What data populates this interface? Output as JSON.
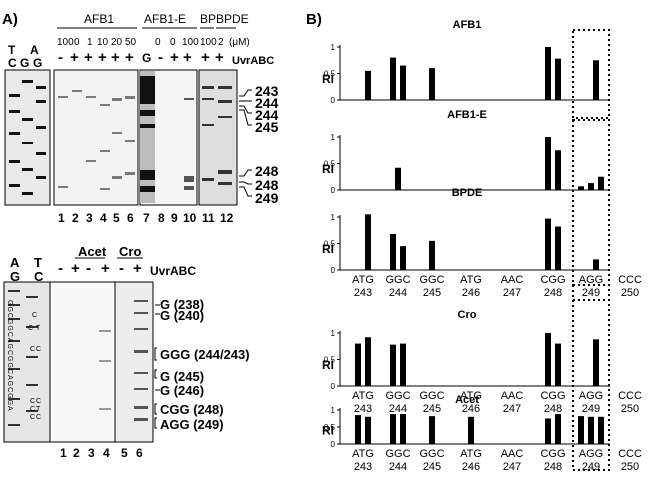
{
  "panel_a": {
    "label": "A)",
    "top_gel": {
      "col_headers": {
        "seq_top": [
          "T",
          "A"
        ],
        "seq_bottom": [
          "C",
          "G",
          "G"
        ],
        "afb1": "AFB1",
        "afb1e": "AFB1-E",
        "bp": "BP",
        "bpde": "BPDE"
      },
      "doses": {
        "afb1": [
          "100",
          "0",
          "1",
          "10",
          "20",
          "50"
        ],
        "afb1e": [
          "0",
          "0",
          "100"
        ],
        "bp": "100",
        "bpde": "2",
        "unit": "(μM)"
      },
      "uvr_signs": [
        "-",
        "+",
        "+",
        "+",
        "+",
        "+",
        "G",
        "-",
        "+",
        "+",
        "+",
        "+"
      ],
      "uvr_label": "UvrABC",
      "right_labels": [
        "243",
        "244",
        "244",
        "245",
        "248",
        "248",
        "249"
      ],
      "lanes": [
        "1",
        "2",
        "3",
        "4",
        "5",
        "6",
        "7",
        "8",
        "9",
        "10",
        "11",
        "12"
      ]
    },
    "bottom_gel": {
      "seq_top": [
        "A",
        "T"
      ],
      "seq_bottom": [
        "G",
        "C"
      ],
      "groups": [
        "Acet",
        "Cro"
      ],
      "uvr_signs": [
        "-",
        "+",
        "-",
        "+",
        "-",
        "+"
      ],
      "uvr_label": "UvrABC",
      "right_labels": [
        "G (238)",
        "G (240)",
        "GGG (244/243)",
        "G (245)",
        "G (246)",
        "CGG (248)",
        "AGG (249)"
      ],
      "lanes": [
        "1",
        "2",
        "3",
        "4",
        "5",
        "6"
      ],
      "side_seq": "GGCGGCAGCGGCAGCGGA",
      "lane_text": [
        "C",
        "C",
        "T",
        "C",
        "C",
        "C",
        "C",
        "C",
        "T",
        "C",
        "C"
      ]
    }
  },
  "panel_b": {
    "label": "B)",
    "ri_label": "RI",
    "highlight_box": "codon 249",
    "chart_data": [
      {
        "type": "bar",
        "title": "AFB1",
        "ylabel": "RI",
        "ylim": [
          0,
          1
        ],
        "yticks": [
          "1",
          "0.5",
          "0"
        ],
        "codons": [
          "243",
          "244",
          "245",
          "246",
          "247",
          "248",
          "249",
          "250"
        ],
        "bars": [
          {
            "codon": "243",
            "values": [
              0.0,
              0.55
            ]
          },
          {
            "codon": "244",
            "values": [
              0.8,
              0.65
            ]
          },
          {
            "codon": "245",
            "values": [
              0.6
            ]
          },
          {
            "codon": "248",
            "values": [
              1.0,
              0.78
            ]
          },
          {
            "codon": "249",
            "values": [
              0.0,
              0.75
            ]
          }
        ]
      },
      {
        "type": "bar",
        "title": "AFB1-E",
        "ylabel": "RI",
        "ylim": [
          0,
          1
        ],
        "yticks": [
          "1",
          "0.5",
          "0"
        ],
        "codons": [
          "243",
          "244",
          "245",
          "246",
          "247",
          "248",
          "249",
          "250"
        ],
        "bars": [
          {
            "codon": "244",
            "values": [
              0.42
            ]
          },
          {
            "codon": "248",
            "values": [
              1.0,
              0.75
            ]
          },
          {
            "codon": "249",
            "values": [
              0.07,
              0.13,
              0.25
            ]
          }
        ]
      },
      {
        "type": "bar",
        "title": "BPDE",
        "ylabel": "RI",
        "ylim": [
          0,
          1
        ],
        "yticks": [
          "1",
          "0.5",
          "0"
        ],
        "codons": [
          "243",
          "244",
          "245",
          "246",
          "247",
          "248",
          "249",
          "250"
        ],
        "bars": [
          {
            "codon": "243",
            "values": [
              0.0,
              1.05
            ]
          },
          {
            "codon": "244",
            "values": [
              0.68,
              0.45
            ]
          },
          {
            "codon": "245",
            "values": [
              0.55
            ]
          },
          {
            "codon": "248",
            "values": [
              0.97,
              0.82
            ]
          },
          {
            "codon": "249",
            "values": [
              0.0,
              0.2
            ]
          }
        ],
        "axis_labels": [
          [
            "ATG",
            "243"
          ],
          [
            "GGC",
            "244"
          ],
          [
            "GGC",
            "245"
          ],
          [
            "ATG",
            "246"
          ],
          [
            "AAC",
            "247"
          ],
          [
            "CGG",
            "248"
          ],
          [
            "AGG",
            "249"
          ],
          [
            "CCC",
            "250"
          ]
        ]
      },
      {
        "type": "bar",
        "title": "Cro",
        "ylabel": "RI",
        "ylim": [
          0,
          1
        ],
        "yticks": [
          "1",
          "0.5",
          "0"
        ],
        "codons": [
          "243",
          "244",
          "245",
          "246",
          "247",
          "248",
          "249",
          "250"
        ],
        "bars": [
          {
            "codon": "243",
            "values": [
              0.8,
              0.92
            ]
          },
          {
            "codon": "244",
            "values": [
              0.78,
              0.8
            ]
          },
          {
            "codon": "248",
            "values": [
              1.0,
              0.8
            ]
          },
          {
            "codon": "249",
            "values": [
              0.0,
              0.88
            ]
          }
        ],
        "axis_labels": [
          [
            "ATG",
            "243"
          ],
          [
            "GGC",
            "244"
          ],
          [
            "GGC",
            "245"
          ],
          [
            "ATG",
            "246"
          ],
          [
            "AAC",
            "247"
          ],
          [
            "CGG",
            "248"
          ],
          [
            "AGG",
            "249"
          ],
          [
            "CCC",
            "250"
          ]
        ]
      },
      {
        "type": "bar",
        "title": "Acet",
        "ylabel": "RI",
        "ylim": [
          0,
          1
        ],
        "yticks": [
          "1",
          "0.5",
          "0"
        ],
        "codons": [
          "243",
          "244",
          "245",
          "246",
          "247",
          "248",
          "249",
          "250"
        ],
        "bars": [
          {
            "codon": "243",
            "values": [
              0.85,
              0.8
            ]
          },
          {
            "codon": "244",
            "values": [
              0.88,
              0.88
            ]
          },
          {
            "codon": "245",
            "values": [
              0.82
            ]
          },
          {
            "codon": "246",
            "values": [
              0.8
            ]
          },
          {
            "codon": "248",
            "values": [
              0.75,
              0.88
            ]
          },
          {
            "codon": "249",
            "values": [
              0.82,
              0.8,
              0.8
            ]
          }
        ],
        "axis_labels": [
          [
            "ATG",
            "243"
          ],
          [
            "GGC",
            "244"
          ],
          [
            "GGC",
            "245"
          ],
          [
            "ATG",
            "246"
          ],
          [
            "AAC",
            "247"
          ],
          [
            "CGG",
            "248"
          ],
          [
            "AGG",
            "249"
          ],
          [
            "CCC",
            "250"
          ]
        ]
      }
    ]
  }
}
